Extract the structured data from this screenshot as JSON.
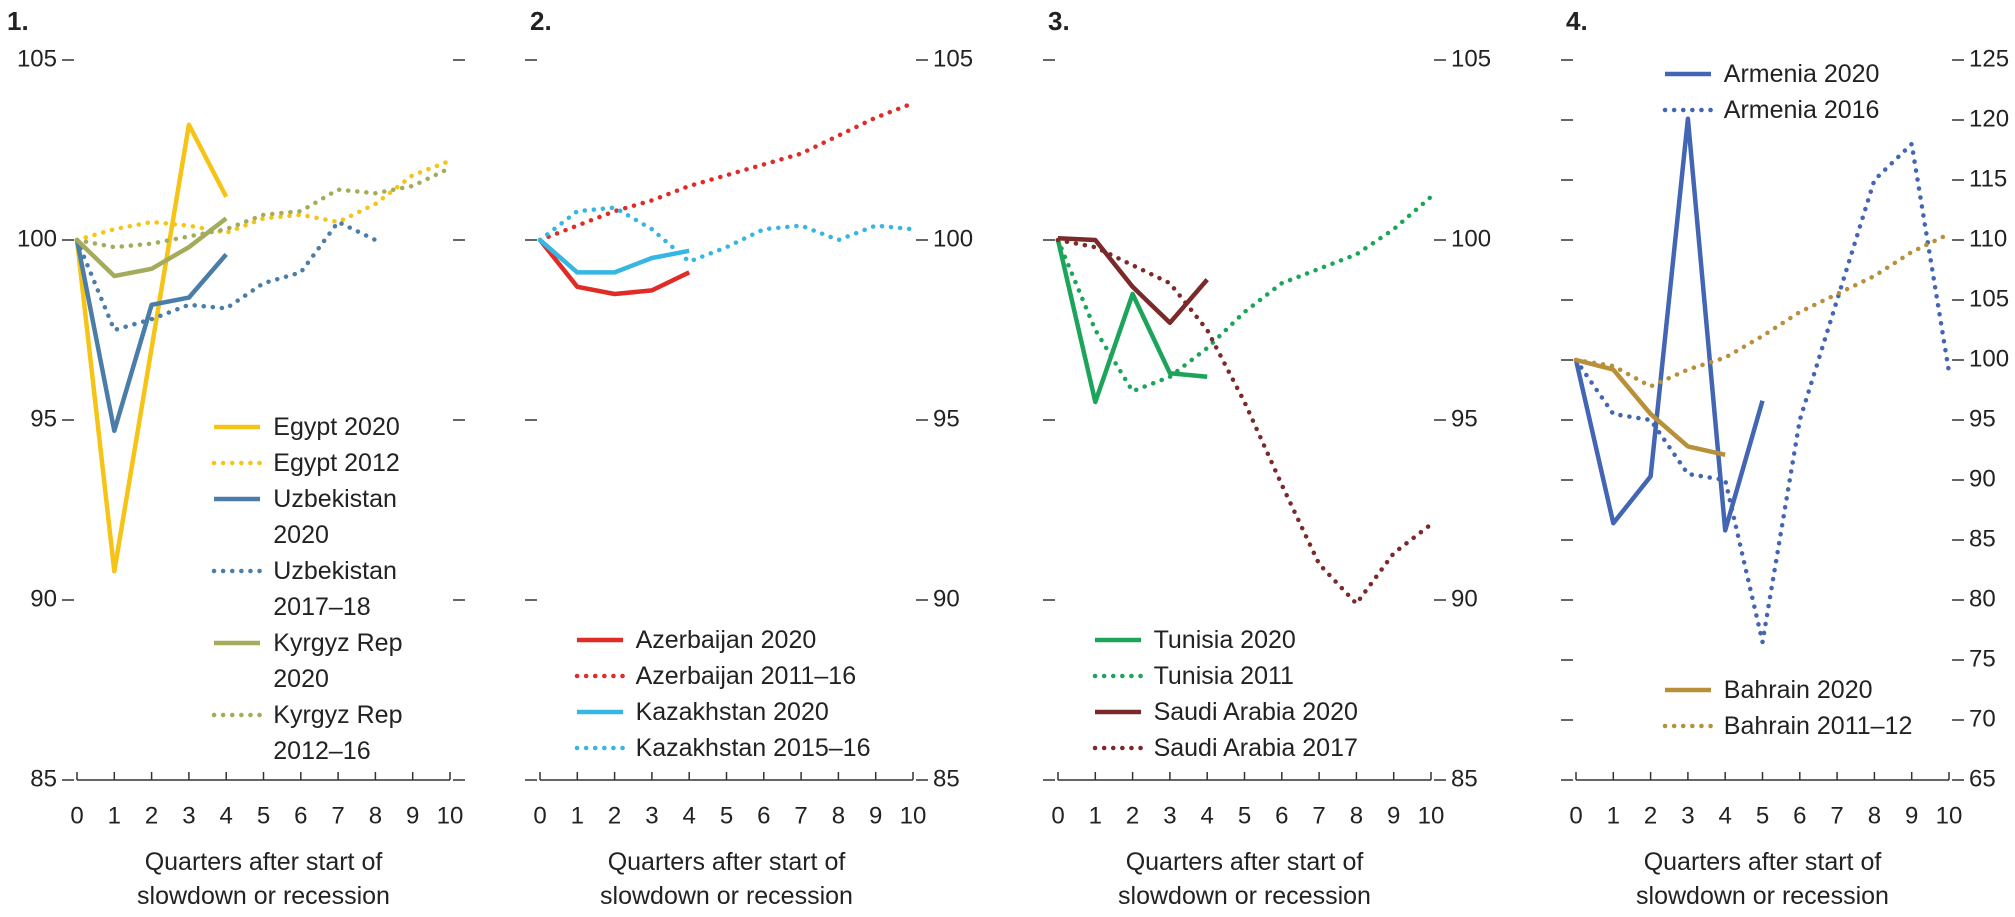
{
  "chart_data": [
    {
      "type": "line",
      "title": "1.",
      "xlabel": "Quarters after start of slowdown or recession",
      "x": [
        0,
        1,
        2,
        3,
        4,
        5,
        6,
        7,
        8,
        9,
        10
      ],
      "xlim": [
        0,
        10
      ],
      "xticks": [
        0,
        1,
        2,
        3,
        4,
        5,
        6,
        7,
        8,
        9,
        10
      ],
      "ylim": [
        85,
        105
      ],
      "yticks": [
        85,
        90,
        95,
        100,
        105
      ],
      "y_labels_side": "left",
      "legend": "bottom-right",
      "series": [
        {
          "name": "Egypt 2020",
          "color": "#f6c416",
          "style": "solid",
          "values": [
            100,
            90.8,
            97,
            103.2,
            101.2,
            null,
            null,
            null,
            null,
            null,
            null
          ]
        },
        {
          "name": "Egypt 2012",
          "color": "#f6c416",
          "style": "dotted",
          "values": [
            100,
            100.3,
            100.5,
            100.4,
            100.2,
            100.6,
            100.7,
            100.5,
            101.0,
            101.8,
            102.2
          ]
        },
        {
          "name": "Uzbekistan 2020",
          "color": "#4a7ea8",
          "style": "solid",
          "values": [
            100,
            94.7,
            98.2,
            98.4,
            99.6,
            null,
            null,
            null,
            null,
            null,
            null
          ]
        },
        {
          "name": "Uzbekistan 2017–18",
          "color": "#4a7ea8",
          "style": "dotted",
          "values": [
            100,
            97.5,
            97.8,
            98.2,
            98.1,
            98.8,
            99.1,
            100.5,
            100.0,
            null,
            null
          ]
        },
        {
          "name": "Kyrgyz Rep 2020",
          "color": "#a4ac5c",
          "style": "solid",
          "values": [
            100,
            99.0,
            99.2,
            99.8,
            100.6,
            null,
            null,
            null,
            null,
            null,
            null
          ]
        },
        {
          "name": "Kyrgyz Rep 2012–16",
          "color": "#a4ac5c",
          "style": "dotted",
          "values": [
            100,
            99.8,
            99.9,
            100.1,
            100.3,
            100.7,
            100.8,
            101.4,
            101.3,
            101.5,
            102.0
          ]
        }
      ]
    },
    {
      "type": "line",
      "title": "2.",
      "xlabel": "Quarters after start of slowdown or recession",
      "x": [
        0,
        1,
        2,
        3,
        4,
        5,
        6,
        7,
        8,
        9,
        10
      ],
      "xlim": [
        0,
        10
      ],
      "xticks": [
        0,
        1,
        2,
        3,
        4,
        5,
        6,
        7,
        8,
        9,
        10
      ],
      "ylim": [
        85,
        105
      ],
      "yticks": [
        85,
        90,
        95,
        100,
        105
      ],
      "y_labels_side": "right",
      "legend": "bottom-left",
      "series": [
        {
          "name": "Azerbaijan 2020",
          "color": "#e02b26",
          "style": "solid",
          "values": [
            100,
            98.7,
            98.5,
            98.6,
            99.1,
            null,
            null,
            null,
            null,
            null,
            null
          ]
        },
        {
          "name": "Azerbaijan 2011–16",
          "color": "#e02b26",
          "style": "dotted",
          "values": [
            100,
            100.4,
            100.8,
            101.1,
            101.5,
            101.8,
            102.1,
            102.4,
            102.9,
            103.4,
            103.8
          ]
        },
        {
          "name": "Kazakhstan 2020",
          "color": "#36b6e3",
          "style": "solid",
          "values": [
            100,
            99.1,
            99.1,
            99.5,
            99.7,
            null,
            null,
            null,
            null,
            null,
            null
          ]
        },
        {
          "name": "Kazakhstan 2015–16",
          "color": "#36b6e3",
          "style": "dotted",
          "values": [
            100,
            100.8,
            100.9,
            100.3,
            99.4,
            99.8,
            100.3,
            100.4,
            100.0,
            100.4,
            100.3
          ]
        }
      ]
    },
    {
      "type": "line",
      "title": "3.",
      "xlabel": "Quarters after start of slowdown or recession",
      "x": [
        0,
        1,
        2,
        3,
        4,
        5,
        6,
        7,
        8,
        9,
        10
      ],
      "xlim": [
        0,
        10
      ],
      "xticks": [
        0,
        1,
        2,
        3,
        4,
        5,
        6,
        7,
        8,
        9,
        10
      ],
      "ylim": [
        85,
        105
      ],
      "yticks": [
        85,
        90,
        95,
        100,
        105
      ],
      "y_labels_side": "right",
      "legend": "bottom-left",
      "series": [
        {
          "name": "Tunisia 2020",
          "color": "#1ca55a",
          "style": "solid",
          "values": [
            100,
            95.5,
            98.5,
            96.3,
            96.2,
            null,
            null,
            null,
            null,
            null,
            null
          ]
        },
        {
          "name": "Tunisia 2011",
          "color": "#1ca55a",
          "style": "dotted",
          "values": [
            100,
            97.5,
            95.8,
            96.2,
            97.0,
            98.0,
            98.8,
            99.2,
            99.6,
            100.3,
            101.2
          ]
        },
        {
          "name": "Saudi Arabia 2020",
          "color": "#7b2a2c",
          "style": "solid",
          "values": [
            100.05,
            100.0,
            98.7,
            97.7,
            98.9,
            null,
            null,
            null,
            null,
            null,
            null
          ]
        },
        {
          "name": "Saudi Arabia 2017",
          "color": "#7b2a2c",
          "style": "dotted",
          "values": [
            100,
            99.8,
            99.3,
            98.8,
            97.5,
            95.5,
            93.2,
            91.0,
            89.9,
            91.3,
            92.1
          ]
        }
      ]
    },
    {
      "type": "line",
      "title": "4.",
      "xlabel": "Quarters after start of slowdown or recession",
      "x": [
        0,
        1,
        2,
        3,
        4,
        5,
        6,
        7,
        8,
        9,
        10
      ],
      "xlim": [
        0,
        10
      ],
      "xticks": [
        0,
        1,
        2,
        3,
        4,
        5,
        6,
        7,
        8,
        9,
        10
      ],
      "ylim": [
        65,
        125
      ],
      "yticks": [
        65,
        70,
        75,
        80,
        85,
        90,
        95,
        100,
        105,
        110,
        115,
        120,
        125
      ],
      "y_labels_side": "right",
      "legend": "split",
      "series": [
        {
          "name": "Armenia 2020",
          "color": "#4266b4",
          "style": "solid",
          "legend": "top",
          "values": [
            100,
            86.4,
            90.3,
            120.1,
            85.8,
            96.6,
            null,
            null,
            null,
            null,
            null
          ]
        },
        {
          "name": "Armenia 2016",
          "color": "#4266b4",
          "style": "dotted",
          "legend": "top",
          "values": [
            100,
            95.5,
            95,
            90.5,
            90,
            76.5,
            95,
            105,
            115,
            118,
            99
          ]
        },
        {
          "name": "Bahrain 2020",
          "color": "#b8903a",
          "style": "solid",
          "legend": "bottom",
          "values": [
            100,
            99.2,
            95.5,
            92.8,
            92.1,
            null,
            null,
            null,
            null,
            null,
            null
          ]
        },
        {
          "name": "Bahrain 2011–12",
          "color": "#b8903a",
          "style": "dotted",
          "legend": "bottom",
          "values": [
            100,
            99.5,
            97.8,
            99.2,
            100.2,
            102,
            104,
            105.5,
            107,
            109,
            110.5
          ]
        }
      ]
    }
  ]
}
